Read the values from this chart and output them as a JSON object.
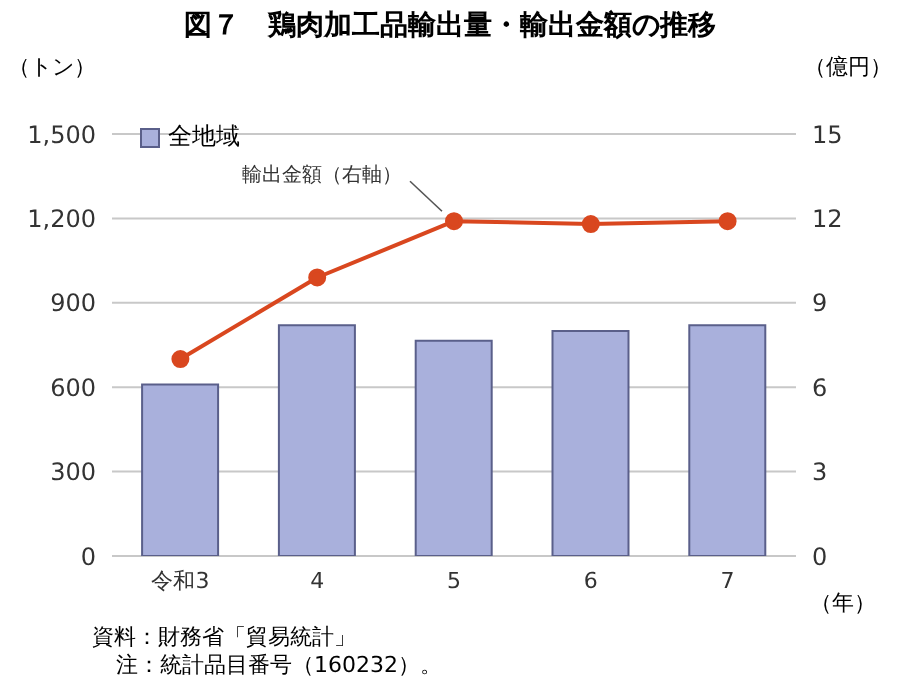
{
  "chart_data": {
    "type": "bar",
    "title": "図７　鶏肉加工品輸出量・輸出金額の推移",
    "ylabel": "（トン）",
    "y2label": "（億円）",
    "xlabel": "（年）",
    "categories": [
      "令和3",
      "4",
      "5",
      "6",
      "7"
    ],
    "series": [
      {
        "name": "全地域",
        "color": "#a9b0dc",
        "values": [
          610,
          820,
          765,
          800,
          820
        ]
      },
      {
        "name": "輸出金額（右軸）",
        "type": "line",
        "axis": "y2",
        "color": "#d9471f",
        "values": [
          7.0,
          9.9,
          11.9,
          11.8,
          11.9
        ]
      }
    ],
    "ylim": [
      0,
      1500
    ],
    "yticks": [
      0,
      300,
      600,
      900,
      {
        "value": 1200,
        "label": "1,200"
      },
      {
        "value": 1500,
        "label": "1,500"
      }
    ],
    "y2lim": [
      0,
      15
    ],
    "y2ticks": [
      0,
      3,
      6,
      9,
      12,
      15
    ],
    "grid": "y",
    "legend": "top left",
    "marker": "circle",
    "line_style": "solid",
    "annotations": [
      "資料：財務省「貿易統計」",
      "注：統計品目番号（160232）。"
    ]
  }
}
